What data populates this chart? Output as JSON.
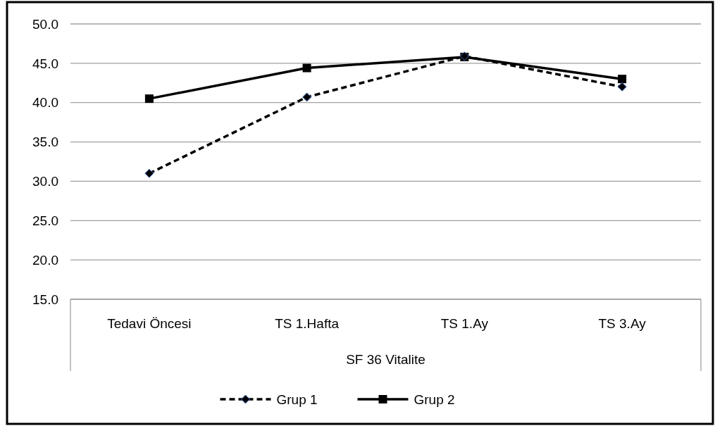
{
  "chart_data": {
    "type": "line",
    "xlabel": "SF 36 Vitalite",
    "categories": [
      "Tedavi Öncesi",
      "TS 1.Hafta",
      "TS 1.Ay",
      "TS 3.Ay"
    ],
    "series": [
      {
        "name": "Grup 1",
        "color": "#000000",
        "values": [
          31.0,
          40.7,
          45.9,
          42.0
        ],
        "marker": "diamond",
        "line_style": "dashed"
      },
      {
        "name": "Grup 2",
        "color": "#000000",
        "values": [
          40.5,
          44.4,
          45.8,
          43.0
        ],
        "marker": "square",
        "line_style": "solid"
      }
    ],
    "ylim": [
      15,
      50
    ],
    "yticks": [
      {
        "value": 15,
        "label": "15.0"
      },
      {
        "value": 20,
        "label": "20.0"
      },
      {
        "value": 25,
        "label": "25.0"
      },
      {
        "value": 30,
        "label": "30.0"
      },
      {
        "value": 35,
        "label": "35.0"
      },
      {
        "value": 40,
        "label": "40.0"
      },
      {
        "value": 45,
        "label": "45.0"
      },
      {
        "value": 50,
        "label": "50.0"
      }
    ],
    "grid": "y",
    "legend": "bottom"
  }
}
